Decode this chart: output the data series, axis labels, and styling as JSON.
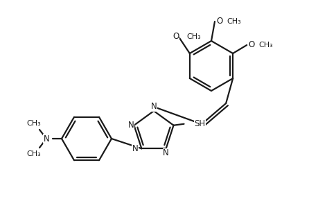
{
  "bg": "#ffffff",
  "lc": "#1a1a1a",
  "lw": 1.6,
  "fs": 8.5,
  "fig_w": 4.6,
  "fig_h": 3.0,
  "dpi": 100,
  "xlim": [
    0.0,
    4.6
  ],
  "ylim": [
    0.0,
    3.0
  ]
}
